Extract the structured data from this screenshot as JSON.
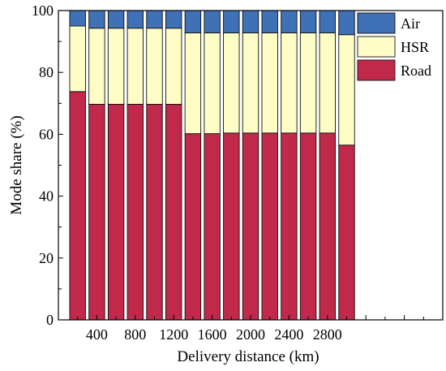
{
  "chart_data": {
    "type": "bar",
    "stacked": true,
    "x": [
      200,
      400,
      600,
      800,
      1000,
      1200,
      1400,
      1600,
      1800,
      2000,
      2200,
      2400,
      2600,
      2800,
      3000
    ],
    "xticks": [
      "400",
      "800",
      "1200",
      "1600",
      "2000",
      "2400",
      "2800"
    ],
    "xtick_values": [
      400,
      800,
      1200,
      1600,
      2000,
      2400,
      2800
    ],
    "xlim": [
      0,
      4000
    ],
    "xlabel": "Delivery distance (km)",
    "ylabel": "Mode share (%)",
    "ylim": [
      0,
      100
    ],
    "yticks": [
      "0",
      "20",
      "40",
      "60",
      "80",
      "100"
    ],
    "ytick_values": [
      0,
      20,
      40,
      60,
      80,
      100
    ],
    "grid": false,
    "legend_position": "top-right",
    "series": [
      {
        "name": "Road",
        "color": "#c0294a",
        "values": [
          73.8,
          69.7,
          69.7,
          69.7,
          69.7,
          69.7,
          60.2,
          60.2,
          60.4,
          60.4,
          60.4,
          60.4,
          60.4,
          60.4,
          56.5
        ]
      },
      {
        "name": "HSR",
        "color": "#fdfdc5",
        "values": [
          21.2,
          24.6,
          24.6,
          24.6,
          24.6,
          24.6,
          32.6,
          32.6,
          32.4,
          32.4,
          32.4,
          32.4,
          32.4,
          32.4,
          35.7
        ]
      },
      {
        "name": "Air",
        "color": "#3e71b6",
        "values": [
          5.0,
          5.7,
          5.7,
          5.7,
          5.7,
          5.7,
          7.2,
          7.2,
          7.2,
          7.2,
          7.2,
          7.2,
          7.2,
          7.2,
          7.8
        ]
      }
    ],
    "legend_order": [
      "Air",
      "HSR",
      "Road"
    ]
  }
}
